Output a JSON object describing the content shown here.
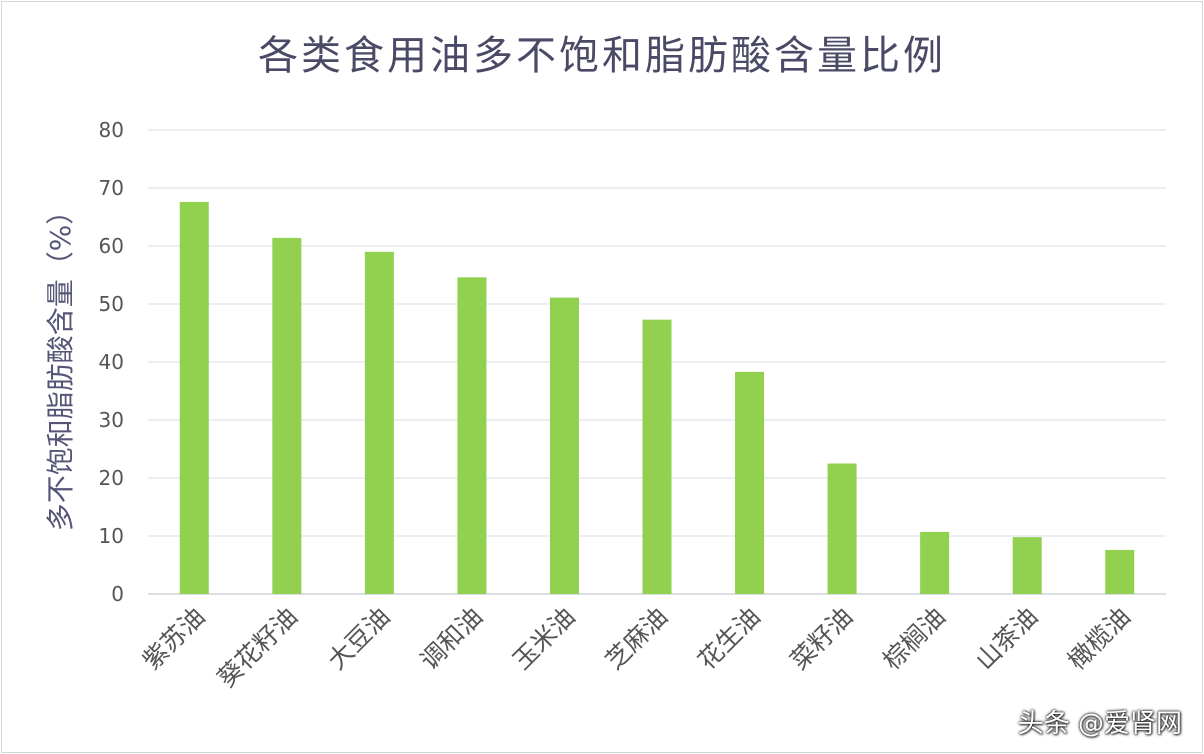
{
  "chart_data": {
    "type": "bar",
    "title": "各类食用油多不饱和脂肪酸含量比例",
    "xlabel": "",
    "ylabel": "多不饱和脂肪酸含量（%）",
    "ylim": [
      0,
      80
    ],
    "yticks": [
      0,
      10,
      20,
      30,
      40,
      50,
      60,
      70,
      80
    ],
    "grid": true,
    "legend": "none",
    "bar_color": "#92d050",
    "categories": [
      "紫苏油",
      "葵花籽油",
      "大豆油",
      "调和油",
      "玉米油",
      "芝麻油",
      "花生油",
      "菜籽油",
      "棕榈油",
      "山茶油",
      "橄榄油"
    ],
    "values": [
      67.6,
      61.4,
      59.0,
      54.6,
      51.1,
      47.3,
      38.3,
      22.5,
      10.7,
      9.8,
      7.6
    ]
  },
  "watermark": "头条 @爱肾网"
}
